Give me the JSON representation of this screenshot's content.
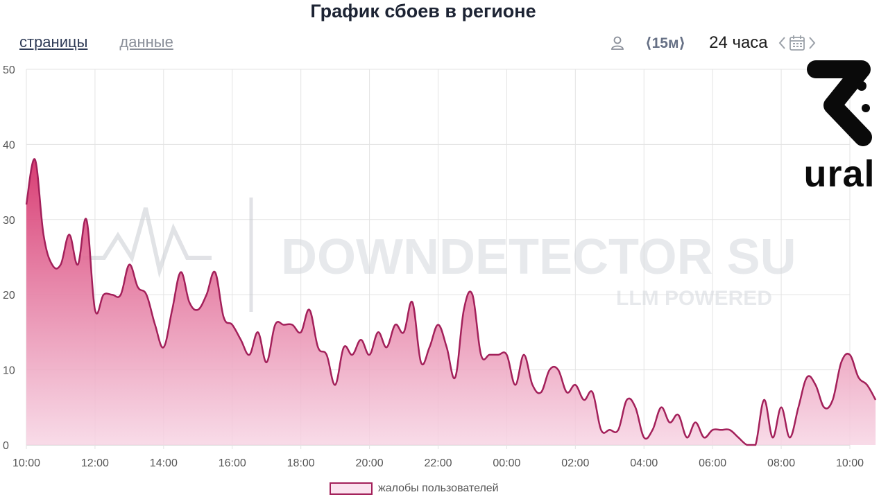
{
  "header": {
    "title": "График сбоев в регионе",
    "tabs": [
      {
        "label": "страницы",
        "active": true
      },
      {
        "label": "данные",
        "active": false
      }
    ],
    "controls": {
      "user_icon": "user-icon",
      "step_label": "⟨15м⟩",
      "range_label": "24 часа",
      "calendar_icon": "calendar-icon"
    }
  },
  "branding": {
    "logo_icon": "ural-logo-icon",
    "logo_text": "ural",
    "watermark_main": "DOWNDETECTOR SU",
    "watermark_sub": "LLM POWERED"
  },
  "colors": {
    "line": "#a3205a",
    "fill_top": "#d6336c",
    "fill_bottom": "#f7d5e4",
    "grid": "#e3e3e3"
  },
  "chart_data": {
    "type": "area",
    "x_start": "10:00",
    "x_end": "10:00",
    "x_step_minutes": 15,
    "x_ticks": [
      "10:00",
      "12:00",
      "14:00",
      "16:00",
      "18:00",
      "20:00",
      "22:00",
      "00:00",
      "02:00",
      "04:00",
      "06:00",
      "08:00",
      "10:00"
    ],
    "y_ticks": [
      0,
      10,
      20,
      30,
      40,
      50
    ],
    "ylim": [
      0,
      50
    ],
    "grid": true,
    "legend_position": "bottom",
    "series": [
      {
        "name": "жалобы пользователей",
        "values": [
          32,
          38,
          28,
          24,
          24,
          28,
          24,
          30,
          18,
          20,
          20,
          20,
          24,
          21,
          20,
          16,
          13,
          18,
          23,
          19,
          18,
          20,
          23,
          17,
          16,
          14,
          12,
          15,
          11,
          16,
          16,
          16,
          15,
          18,
          13,
          12,
          8,
          13,
          12,
          14,
          12,
          15,
          13,
          16,
          15,
          19,
          11,
          13,
          16,
          13,
          9,
          18,
          20,
          12,
          12,
          12,
          12,
          8,
          12,
          8,
          7,
          10,
          10,
          7,
          8,
          6,
          7,
          2,
          2,
          2,
          6,
          5,
          1,
          2,
          5,
          3,
          4,
          1,
          3,
          1,
          2,
          2,
          2,
          1,
          0,
          0,
          6,
          1,
          5,
          1,
          5,
          9,
          8,
          5,
          6,
          11,
          12,
          9,
          8,
          6
        ]
      }
    ]
  }
}
